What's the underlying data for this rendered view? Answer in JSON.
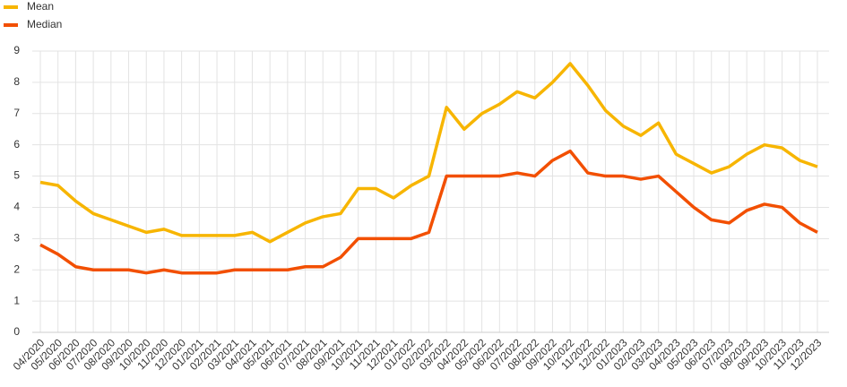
{
  "chart_data": {
    "type": "line",
    "categories": [
      "04/2020",
      "05/2020",
      "06/2020",
      "07/2020",
      "08/2020",
      "09/2020",
      "10/2020",
      "11/2020",
      "12/2020",
      "01/2021",
      "02/2021",
      "03/2021",
      "04/2021",
      "05/2021",
      "06/2021",
      "07/2021",
      "08/2021",
      "09/2021",
      "10/2021",
      "11/2021",
      "12/2021",
      "01/2022",
      "02/2022",
      "03/2022",
      "04/2022",
      "05/2022",
      "06/2022",
      "07/2022",
      "08/2022",
      "09/2022",
      "10/2022",
      "11/2022",
      "12/2022",
      "01/2023",
      "02/2023",
      "03/2023",
      "04/2023",
      "05/2023",
      "06/2023",
      "07/2023",
      "08/2023",
      "09/2023",
      "10/2023",
      "11/2023",
      "12/2023"
    ],
    "series": [
      {
        "name": "Mean",
        "color": "#f7b500",
        "values": [
          4.8,
          4.7,
          4.2,
          3.8,
          3.6,
          3.4,
          3.2,
          3.3,
          3.1,
          3.1,
          3.1,
          3.1,
          3.2,
          2.9,
          3.2,
          3.5,
          3.7,
          3.8,
          4.6,
          4.6,
          4.3,
          4.7,
          5.0,
          7.2,
          6.5,
          7.0,
          7.3,
          7.7,
          7.5,
          8.0,
          8.6,
          7.9,
          7.1,
          6.6,
          6.3,
          6.7,
          5.7,
          5.4,
          5.1,
          5.3,
          5.7,
          6.0,
          5.9,
          5.5,
          5.3
        ]
      },
      {
        "name": "Median",
        "color": "#f24f00",
        "values": [
          2.8,
          2.5,
          2.1,
          2.0,
          2.0,
          2.0,
          1.9,
          2.0,
          1.9,
          1.9,
          1.9,
          2.0,
          2.0,
          2.0,
          2.0,
          2.1,
          2.1,
          2.4,
          3.0,
          3.0,
          3.0,
          3.0,
          3.2,
          5.0,
          5.0,
          5.0,
          5.0,
          5.1,
          5.0,
          5.5,
          5.8,
          5.1,
          5.0,
          5.0,
          4.9,
          5.0,
          4.5,
          4.0,
          3.6,
          3.5,
          3.9,
          4.1,
          4.0,
          3.5,
          3.2
        ]
      }
    ],
    "ylim": [
      0,
      9
    ],
    "yticks": [
      0,
      1,
      2,
      3,
      4,
      5,
      6,
      7,
      8,
      9
    ],
    "grid": true,
    "legend": "top-left"
  }
}
